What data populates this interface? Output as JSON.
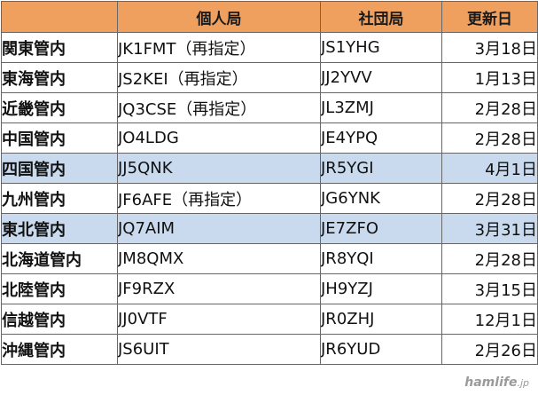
{
  "table": {
    "headers": [
      "",
      "個人局",
      "社団局",
      "更新日"
    ],
    "rows": [
      {
        "region": "関東管内",
        "personal": "JK1FMT（再指定）",
        "club": "JS1YHG",
        "date": "3月18日",
        "highlight": false
      },
      {
        "region": "東海管内",
        "personal": "JS2KEI（再指定）",
        "club": "JJ2YVV",
        "date": "1月13日",
        "highlight": false
      },
      {
        "region": "近畿管内",
        "personal": "JQ3CSE（再指定）",
        "club": "JL3ZMJ",
        "date": "2月28日",
        "highlight": false
      },
      {
        "region": "中国管内",
        "personal": "JO4LDG",
        "club": "JE4YPQ",
        "date": "2月28日",
        "highlight": false
      },
      {
        "region": "四国管内",
        "personal": "JJ5QNK",
        "club": "JR5YGI",
        "date": "4月1日",
        "highlight": true
      },
      {
        "region": "九州管内",
        "personal": "JF6AFE（再指定）",
        "club": "JG6YNK",
        "date": "2月28日",
        "highlight": false
      },
      {
        "region": "東北管内",
        "personal": "JQ7AIM",
        "club": "JE7ZFO",
        "date": "3月31日",
        "highlight": true
      },
      {
        "region": "北海道管内",
        "personal": "JM8QMX",
        "club": "JR8YQI",
        "date": "2月28日",
        "highlight": false
      },
      {
        "region": "北陸管内",
        "personal": "JF9RZX",
        "club": "JH9YZJ",
        "date": "3月15日",
        "highlight": false
      },
      {
        "region": "信越管内",
        "personal": "JJ0VTF",
        "club": "JR0ZHJ",
        "date": "12月1日",
        "highlight": false
      },
      {
        "region": "沖縄管内",
        "personal": "JS6UIT",
        "club": "JR6YUD",
        "date": "2月26日",
        "highlight": false
      }
    ]
  },
  "watermark": {
    "name": "hamlife",
    "tld": ".jp"
  },
  "colors": {
    "header_bg": "#f0a05e",
    "highlight_bg": "#c9d9ee",
    "border": "#666666"
  }
}
